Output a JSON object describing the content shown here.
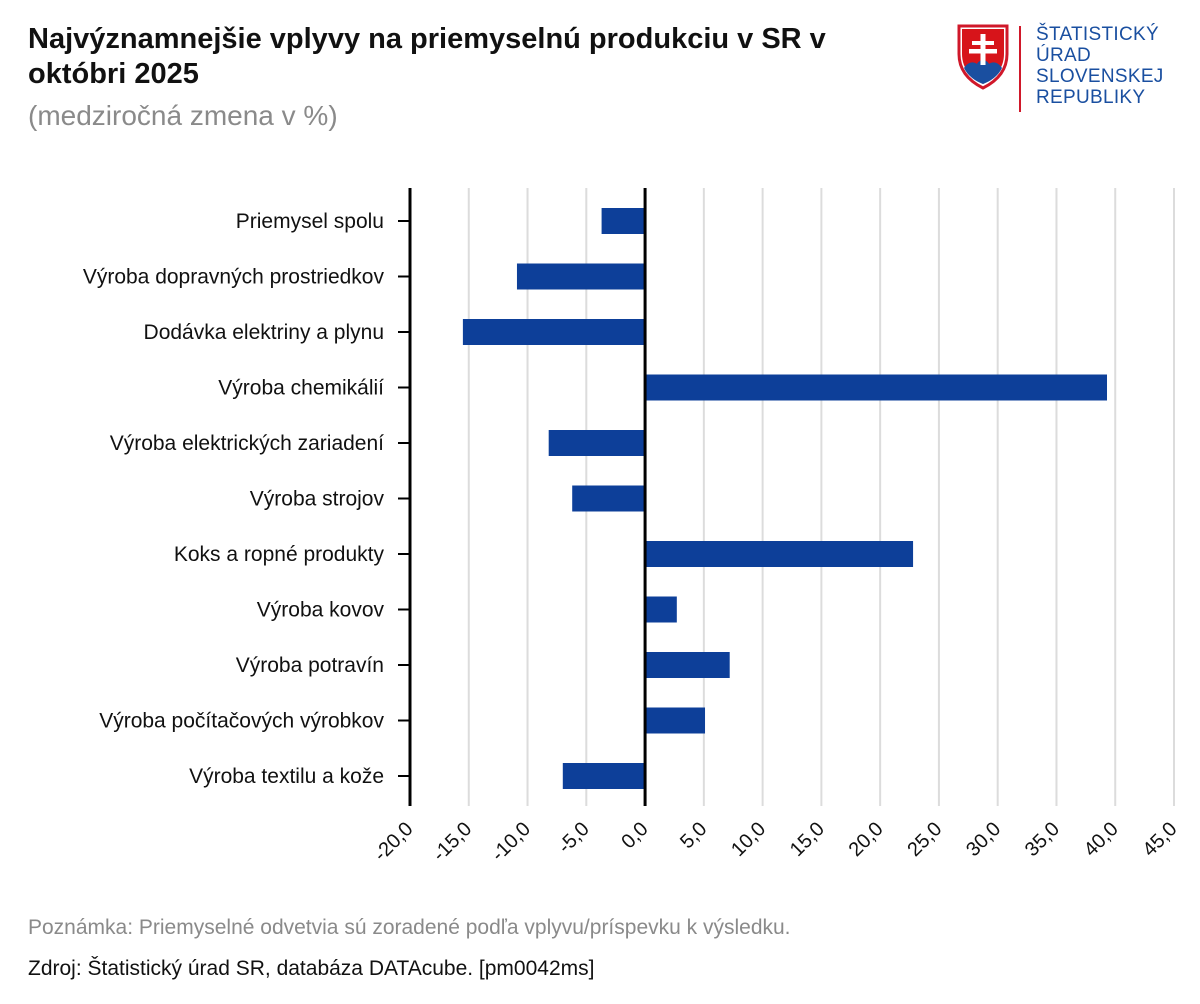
{
  "header": {
    "title": "Najvýznamnejšie vplyvy na priemyselnú produkciu v SR v októbri 2025",
    "subtitle": "(medziročná zmena v %)"
  },
  "logo": {
    "icon": "slovak-coat-of-arms-icon",
    "lines": [
      "ŠTATISTICKÝ",
      "ÚRAD",
      "SLOVENSKEJ",
      "REPUBLIKY"
    ],
    "text_color": "#1a4fa0",
    "divider_color": "#d0182a"
  },
  "chart_data": {
    "type": "bar",
    "orientation": "horizontal",
    "categories": [
      "Priemysel spolu",
      "Výroba dopravných prostriedkov",
      "Dodávka elektriny a plynu",
      "Výroba chemikálií",
      "Výroba elektrických zariadení",
      "Výroba strojov",
      "Koks a ropné produkty",
      "Výroba kovov",
      "Výroba potravín",
      "Výroba počítačových výrobkov",
      "Výroba textilu a kože"
    ],
    "values": [
      -3.7,
      -10.9,
      -15.5,
      39.3,
      -8.2,
      -6.2,
      22.8,
      2.7,
      7.2,
      5.1,
      -7.0
    ],
    "xlim": [
      -20,
      45
    ],
    "xticks": [
      -20,
      -15,
      -10,
      -5,
      0,
      5,
      10,
      15,
      20,
      25,
      30,
      35,
      40,
      45
    ],
    "xtick_labels": [
      "-20,0",
      "-15,0",
      "-10,0",
      "-5,0",
      "0,0",
      "5,0",
      "10,0",
      "15,0",
      "20,0",
      "25,0",
      "30,0",
      "35,0",
      "40,0",
      "45,0"
    ],
    "grid": true,
    "bar_color": "#0d3f99",
    "grid_color": "#dcdcdc"
  },
  "footer": {
    "note": "Poznámka: Priemyselné odvetvia sú zoradené podľa vplyvu/príspevku k výsledku.",
    "source": "Zdroj: Štatistický úrad SR, databáza DATAcube. [pm0042ms]"
  }
}
